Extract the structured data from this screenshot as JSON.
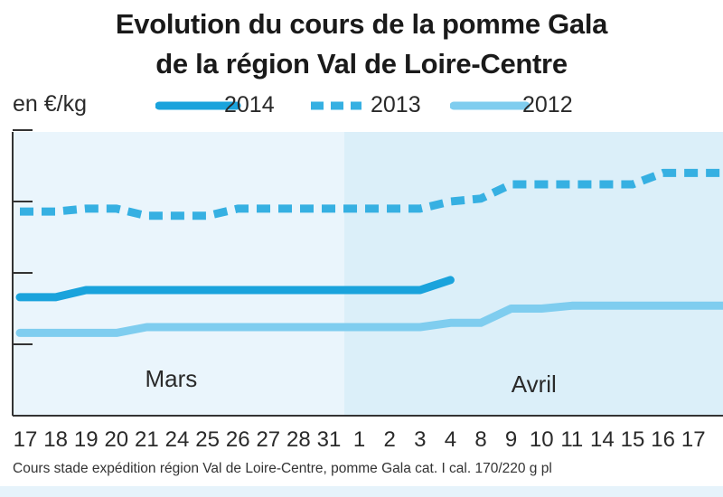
{
  "colors": {
    "s2014": "#1aa3dc",
    "s2013": "#36b0e2",
    "s2012": "#7fcdef",
    "bg_mars": "#eaf5fc",
    "bg_avril": "#dbeff9",
    "axis": "#333333"
  },
  "chart_data": {
    "type": "line",
    "title": "Evolution du cours de la pomme Gala",
    "subtitle": "de la région Val de Loire-Centre",
    "ylabel": "en €/kg",
    "xlabel": "",
    "months": [
      "Mars",
      "Avril"
    ],
    "categories": [
      "17",
      "18",
      "19",
      "20",
      "21",
      "24",
      "25",
      "26",
      "27",
      "28",
      "31",
      "1",
      "2",
      "3",
      "4",
      "8",
      "9",
      "10",
      "11",
      "14",
      "15",
      "16",
      "17"
    ],
    "ylim": [
      0,
      2
    ],
    "y_ticks": [
      0.5,
      1.0,
      1.5,
      2.0
    ],
    "grid": false,
    "legend_position": "top",
    "series": [
      {
        "name": "2014",
        "style": "solid",
        "values": [
          0.83,
          0.83,
          0.88,
          0.88,
          0.88,
          0.88,
          0.88,
          0.88,
          0.88,
          0.88,
          0.88,
          0.88,
          0.88,
          0.88,
          0.95,
          null,
          null,
          null,
          null,
          null,
          null,
          null,
          null
        ]
      },
      {
        "name": "2013",
        "style": "dashed",
        "values": [
          1.43,
          1.43,
          1.45,
          1.45,
          1.4,
          1.4,
          1.4,
          1.45,
          1.45,
          1.45,
          1.45,
          1.45,
          1.45,
          1.45,
          1.5,
          1.52,
          1.62,
          1.62,
          1.62,
          1.62,
          1.62,
          1.7,
          1.7
        ]
      },
      {
        "name": "2012",
        "style": "solid",
        "values": [
          0.58,
          0.58,
          0.58,
          0.58,
          0.62,
          0.62,
          0.62,
          0.62,
          0.62,
          0.62,
          0.62,
          0.62,
          0.62,
          0.62,
          0.65,
          0.65,
          0.75,
          0.75,
          0.77,
          0.77,
          0.77,
          0.77,
          0.77
        ]
      }
    ],
    "source_note": "Cours stade expédition région Val de Loire-Centre, pomme Gala cat. I cal. 170/220 g pl"
  }
}
